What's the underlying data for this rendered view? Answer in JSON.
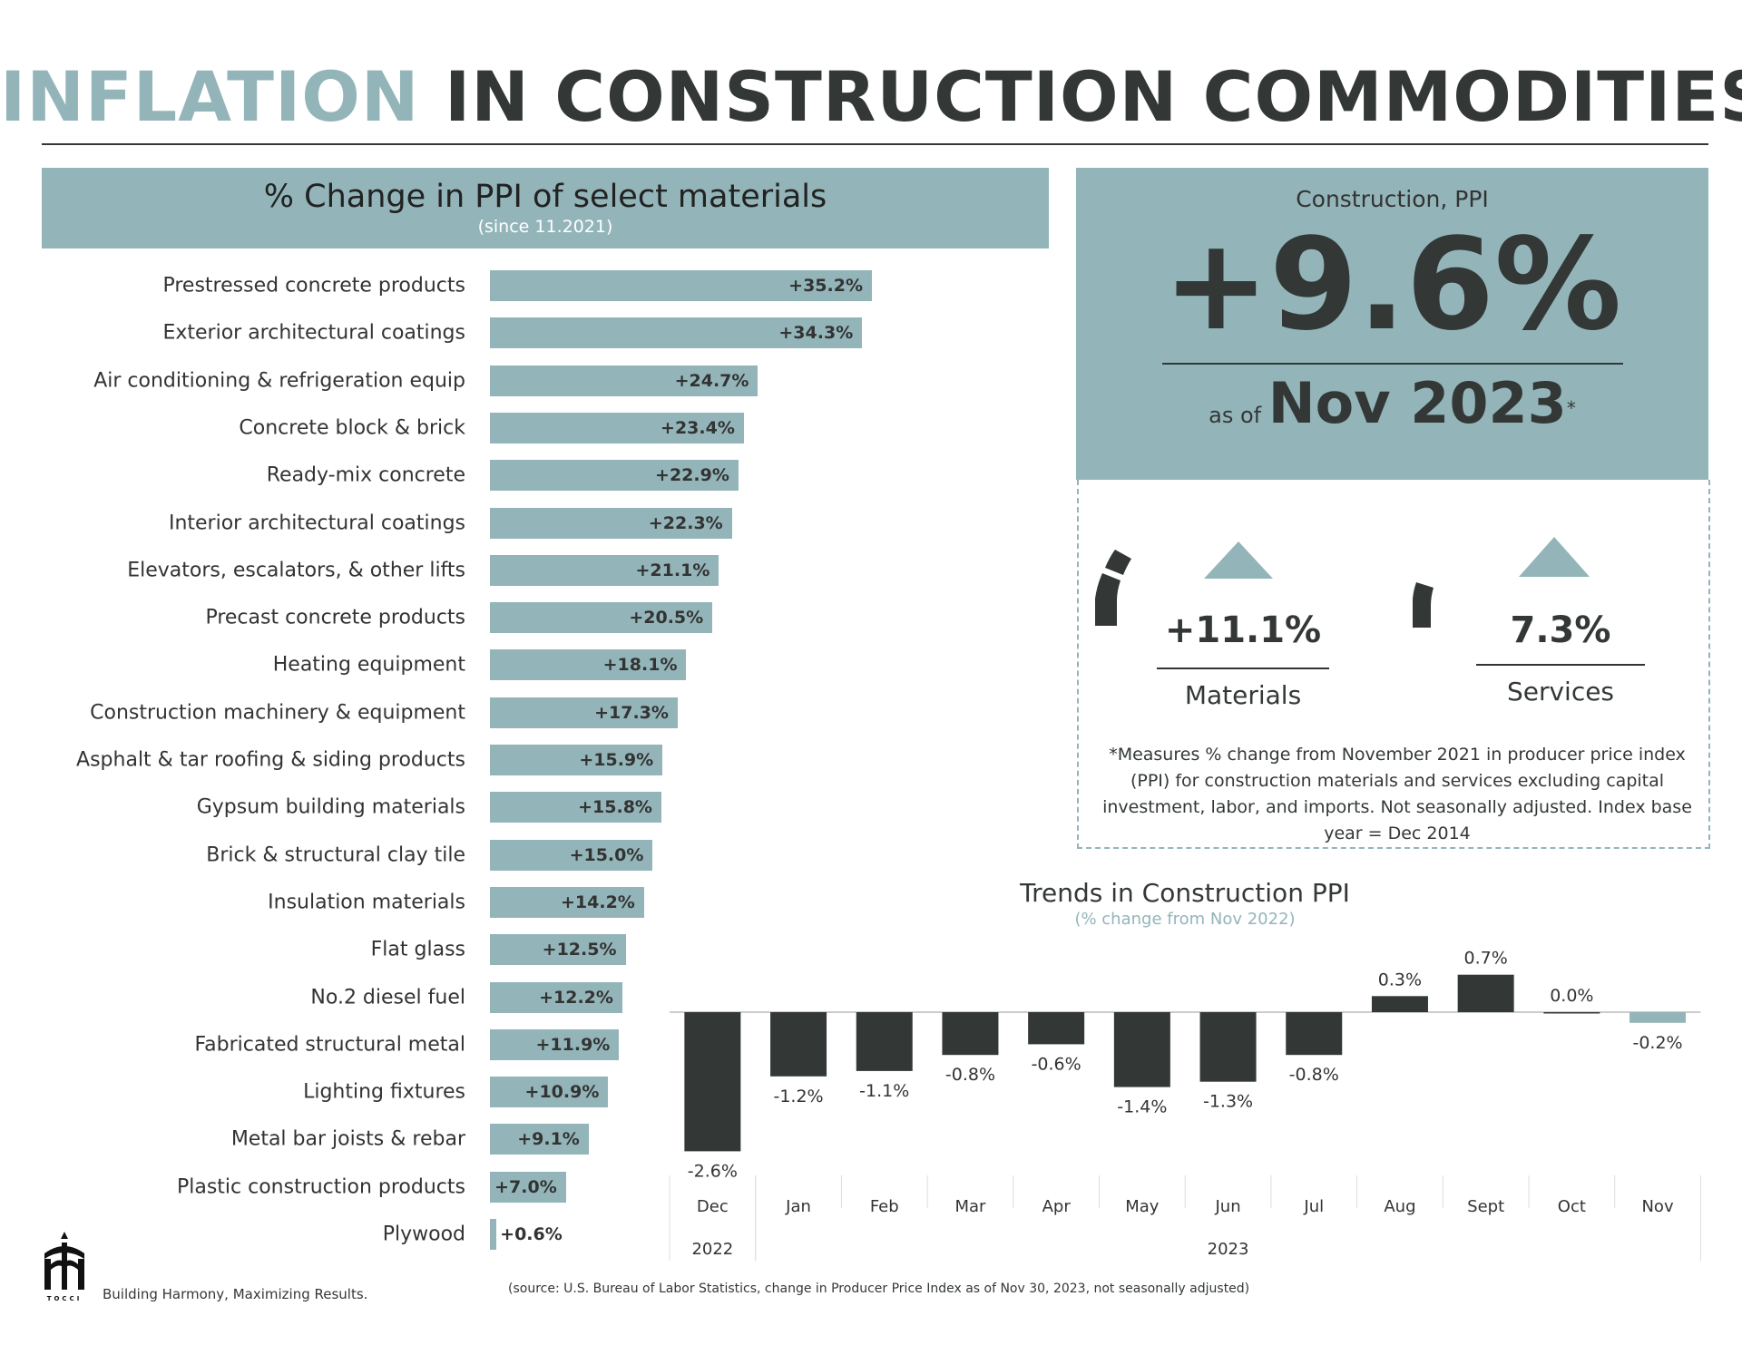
{
  "header": {
    "title_accent": "INFLATION",
    "title_rest": "IN CONSTRUCTION COMMODITIES"
  },
  "left_panel": {
    "title": "% Change in PPI of select materials",
    "subtitle": "(since 11.2021)"
  },
  "summary": {
    "label": "Construction, PPI",
    "value": "+9.6%",
    "as_of_prefix": "as of",
    "as_of_date": "Nov 2023",
    "asterisk": "*",
    "materials": {
      "value": "+11.1%",
      "label": "Materials"
    },
    "services": {
      "value": "7.3%",
      "label": "Services"
    },
    "note": "*Measures % change from November 2021 in producer price index (PPI) for construction materials and services excluding capital investment, labor, and imports. Not seasonally adjusted. Index base year = Dec 2014"
  },
  "colors": {
    "accent": "#93b5b9",
    "dark": "#333836"
  },
  "chart_data": [
    {
      "type": "bar",
      "orientation": "horizontal",
      "title": "% Change in PPI of select materials",
      "subtitle": "(since 11.2021)",
      "categories": [
        "Prestressed concrete products",
        "Exterior architectural coatings",
        "Air conditioning & refrigeration equip",
        "Concrete block & brick",
        "Ready-mix concrete",
        "Interior architectural coatings",
        "Elevators, escalators, & other lifts",
        "Precast concrete products",
        "Heating equipment",
        "Construction machinery & equipment",
        "Asphalt & tar roofing & siding products",
        "Gypsum building materials",
        "Brick & structural clay tile",
        "Insulation materials",
        "Flat glass",
        "No.2 diesel fuel",
        "Fabricated structural metal",
        "Lighting fixtures",
        "Metal bar joists & rebar",
        "Plastic construction products",
        "Plywood"
      ],
      "values": [
        35.2,
        34.3,
        24.7,
        23.4,
        22.9,
        22.3,
        21.1,
        20.5,
        18.1,
        17.3,
        15.9,
        15.8,
        15.0,
        14.2,
        12.5,
        12.2,
        11.9,
        10.9,
        9.1,
        7.0,
        0.6
      ],
      "labels": [
        "+35.2%",
        "+34.3%",
        "+24.7%",
        "+23.4%",
        "+22.9%",
        "+22.3%",
        "+21.1%",
        "+20.5%",
        "+18.1%",
        "+17.3%",
        "+15.9%",
        "+15.8%",
        "+15.0%",
        "+14.2%",
        "+12.5%",
        "+12.2%",
        "+11.9%",
        "+10.9%",
        "+9.1%",
        "+7.0%",
        "+0.6%"
      ]
    },
    {
      "type": "bar",
      "title": "Trends in Construction PPI",
      "subtitle": "(% change from Nov 2022)",
      "categories": [
        "Dec",
        "Jan",
        "Feb",
        "Mar",
        "Apr",
        "May",
        "Jun",
        "Jul",
        "Aug",
        "Sept",
        "Oct",
        "Nov"
      ],
      "year_labels": [
        "2022",
        "2023"
      ],
      "values": [
        -2.6,
        -1.2,
        -1.1,
        -0.8,
        -0.6,
        -1.4,
        -1.3,
        -0.8,
        0.3,
        0.7,
        0.0,
        -0.2
      ],
      "labels": [
        "-2.6%",
        "-1.2%",
        "-1.1%",
        "-0.8%",
        "-0.6%",
        "-1.4%",
        "-1.3%",
        "-0.8%",
        "0.3%",
        "0.7%",
        "0.0%",
        "-0.2%"
      ]
    }
  ],
  "footer": {
    "logo_text": "TOCCI",
    "tagline": "Building Harmony, Maximizing Results.",
    "source": "(source: U.S. Bureau of Labor Statistics, change in Producer Price Index as of Nov 30, 2023, not seasonally adjusted)"
  }
}
